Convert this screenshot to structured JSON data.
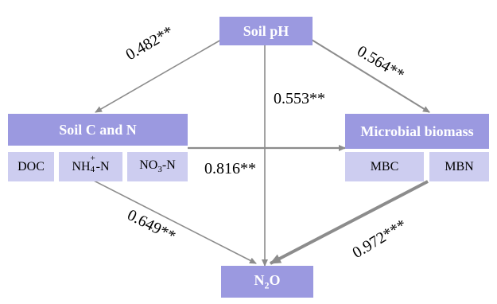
{
  "nodes": {
    "soil_ph": "Soil pH",
    "soil_cn": "Soil C and N",
    "microbial": "Microbial biomass",
    "n2o": {
      "base": "N",
      "sub": "2",
      "tail": "O"
    }
  },
  "sub_nodes": {
    "doc": "DOC",
    "nh4": {
      "base": "NH",
      "sub": "4",
      "sup": "+",
      "tail": "-N"
    },
    "no3": {
      "base": "NO",
      "sub": "3",
      "tail": "-N"
    },
    "mbc": "MBC",
    "mbn": "MBN"
  },
  "paths": [
    {
      "from": "Soil pH",
      "to": "Soil C and N",
      "coef": "0.482**"
    },
    {
      "from": "Soil pH",
      "to": "Microbial biomass",
      "coef": "0.564**"
    },
    {
      "from": "Soil pH",
      "to": "N2O",
      "coef": "0.553**"
    },
    {
      "from": "Soil C and N",
      "to": "Microbial biomass",
      "coef": "0.816**"
    },
    {
      "from": "Soil C and N",
      "to": "N2O",
      "coef": "0.649**"
    },
    {
      "from": "Microbial biomass",
      "to": "N2O",
      "coef": "0.972***"
    }
  ],
  "colors": {
    "main_box": "#9b99e0",
    "sub_box": "#cdcdf0",
    "arrow": "#8c8c8c"
  }
}
